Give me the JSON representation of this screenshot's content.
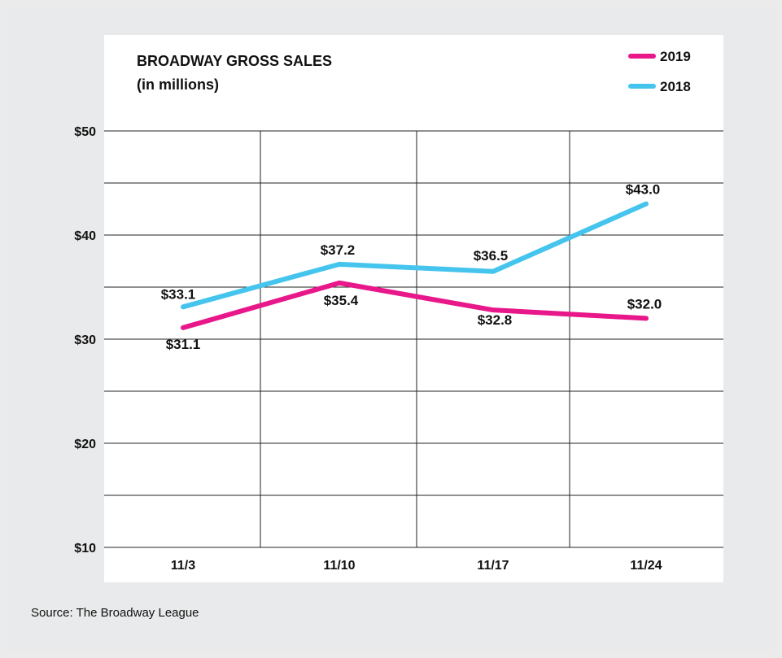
{
  "chart_data": {
    "type": "line",
    "title": "BROADWAY GROSS SALES",
    "subtitle": "(in millions)",
    "categories": [
      "11/3",
      "11/10",
      "11/17",
      "11/24"
    ],
    "ylim": [
      10,
      50
    ],
    "yticks": [
      10,
      20,
      30,
      40,
      50
    ],
    "ytick_labels": [
      "$10",
      "$20",
      "$30",
      "$40",
      "$50"
    ],
    "grid": true,
    "legend_position": "top-right",
    "series": [
      {
        "name": "2019",
        "color": "#e8178a",
        "values": [
          31.1,
          35.4,
          32.8,
          32.0
        ],
        "labels": [
          "$31.1",
          "$35.4",
          "$32.8",
          "$32.0"
        ]
      },
      {
        "name": "2018",
        "color": "#45c4ee",
        "values": [
          33.1,
          37.2,
          36.5,
          43.0
        ],
        "labels": [
          "$33.1",
          "$37.2",
          "$36.5",
          "$43.0"
        ]
      }
    ]
  },
  "source": "Source: The Broadway League"
}
